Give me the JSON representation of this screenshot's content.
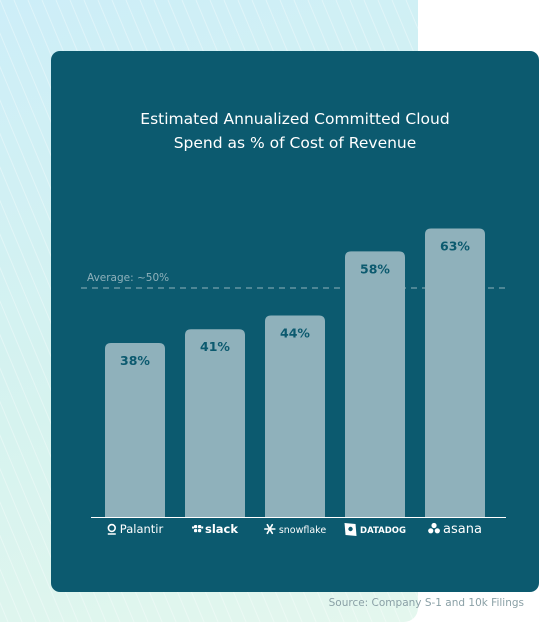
{
  "chart_data": {
    "type": "bar",
    "title_lines": [
      "Estimated Annualized Committed Cloud",
      "Spend as % of Cost of Revenue"
    ],
    "categories": [
      "Palantir",
      "slack",
      "snowflake",
      "DATADOG",
      "asana"
    ],
    "values": [
      38,
      41,
      44,
      58,
      63
    ],
    "value_labels": [
      "38%",
      "41%",
      "44%",
      "58%",
      "63%"
    ],
    "reference_line": {
      "value": 50,
      "label": "Average: ~50%",
      "style": "dashed"
    },
    "ylim": [
      0,
      70
    ],
    "grid": false,
    "legend": "none"
  },
  "source": "Source: Company S-1 and 10k Filings",
  "colors": {
    "card_bg": "#0c5a6f",
    "bar": "#8fb1bb",
    "bar_label": "#0c5a6f",
    "text": "#ffffff",
    "average_line": "#8fb1bb"
  },
  "icons": [
    "palantir-logo-icon",
    "slack-logo-icon",
    "snowflake-logo-icon",
    "datadog-logo-icon",
    "asana-logo-icon"
  ]
}
